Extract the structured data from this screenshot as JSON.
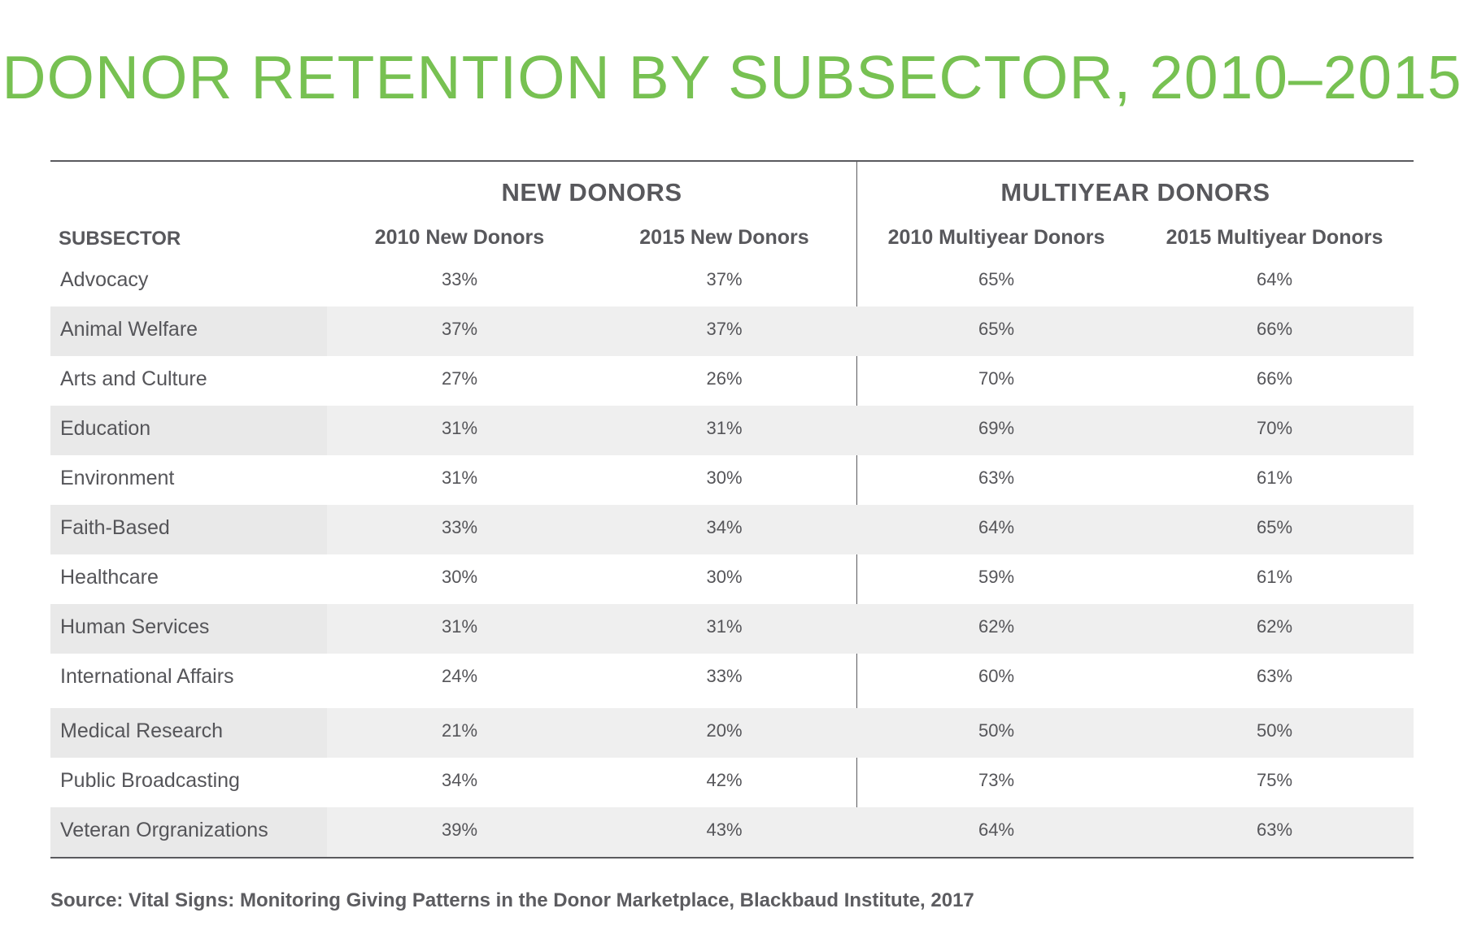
{
  "colors": {
    "title": "#77c152",
    "text": "#555559",
    "rule": "#5a5a5e",
    "row_shade": "#efefef"
  },
  "title": "DONOR RETENTION BY SUBSECTOR, 2010–2015",
  "source": "Source: Vital Signs: Monitoring Giving Patterns in the Donor Marketplace, Blackbaud Institute, 2017",
  "chart_data": {
    "type": "table",
    "title": "DONOR RETENTION BY SUBSECTOR, 2010–2015",
    "column_groups": [
      "NEW DONORS",
      "MULTIYEAR DONORS"
    ],
    "columns": [
      "SUBSECTOR",
      "2010 New Donors",
      "2015 New Donors",
      "2010 Multiyear Donors",
      "2015 Multiyear Donors"
    ],
    "rows": [
      [
        "Advocacy",
        "33%",
        "37%",
        "65%",
        "64%"
      ],
      [
        "Animal Welfare",
        "37%",
        "37%",
        "65%",
        "66%"
      ],
      [
        "Arts and Culture",
        "27%",
        "26%",
        "70%",
        "66%"
      ],
      [
        "Education",
        "31%",
        "31%",
        "69%",
        "70%"
      ],
      [
        "Environment",
        "31%",
        "30%",
        "63%",
        "61%"
      ],
      [
        "Faith-Based",
        "33%",
        "34%",
        "64%",
        "65%"
      ],
      [
        "Healthcare",
        "30%",
        "30%",
        "59%",
        "61%"
      ],
      [
        "Human Services",
        "31%",
        "31%",
        "62%",
        "62%"
      ],
      [
        "International Affairs",
        "24%",
        "33%",
        "60%",
        "63%"
      ],
      [
        "Medical Research",
        "21%",
        "20%",
        "50%",
        "50%"
      ],
      [
        "Public Broadcasting",
        "34%",
        "42%",
        "73%",
        "75%"
      ],
      [
        "Veteran Orgranizations",
        "39%",
        "43%",
        "64%",
        "63%"
      ]
    ]
  }
}
